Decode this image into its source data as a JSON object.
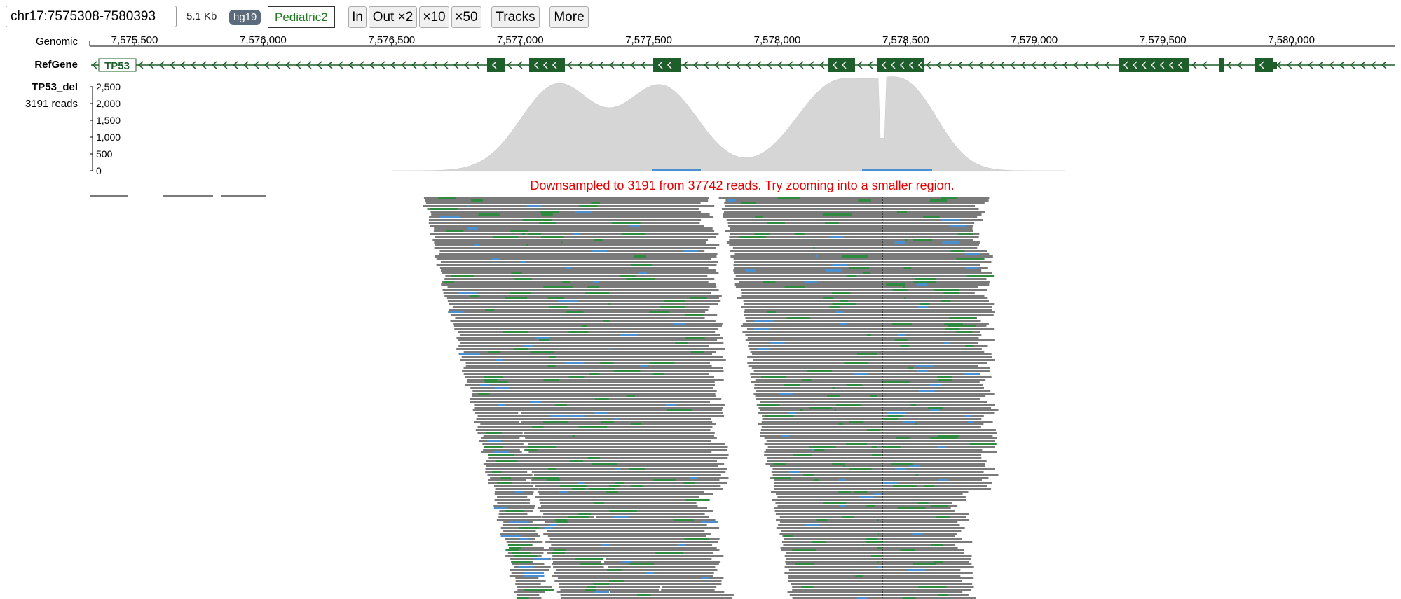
{
  "toolbar": {
    "locus": "chr17:7575308-7580393",
    "span": "5.1 Kb",
    "genome": "hg19",
    "dataset": "Pediatric2",
    "zoom_in": "In",
    "zoom_out": "Out ×2",
    "zoom_10": "×10",
    "zoom_50": "×50",
    "tracks": "Tracks",
    "more": "More"
  },
  "tracks": {
    "genomic_label": "Genomic",
    "refgene_label": "RefGene",
    "bam_label": "TP53_del",
    "bam_reads": "3191 reads",
    "gene_name": "TP53",
    "downsample_message": "Downsampled to 3191 from 37742 reads. Try zooming into a smaller region."
  },
  "ruler": {
    "ticks": [
      "7,575,500",
      "7,576,000",
      "7,576,500",
      "7,577,000",
      "7,577,500",
      "7,578,000",
      "7,578,500",
      "7,579,000",
      "7,579,500",
      "7,580,000"
    ]
  },
  "coverage_axis": {
    "ticks": [
      "2,500",
      "2,000",
      "1,500",
      "1,000",
      "500",
      "0"
    ]
  },
  "colors": {
    "gene": "#1e5e2a",
    "read": "#7a7a7a",
    "mismatch_green": "#2e8a3e",
    "mismatch_blue": "#4a8fd0",
    "coverage": "#d6d6d6",
    "message": "#e60000"
  }
}
